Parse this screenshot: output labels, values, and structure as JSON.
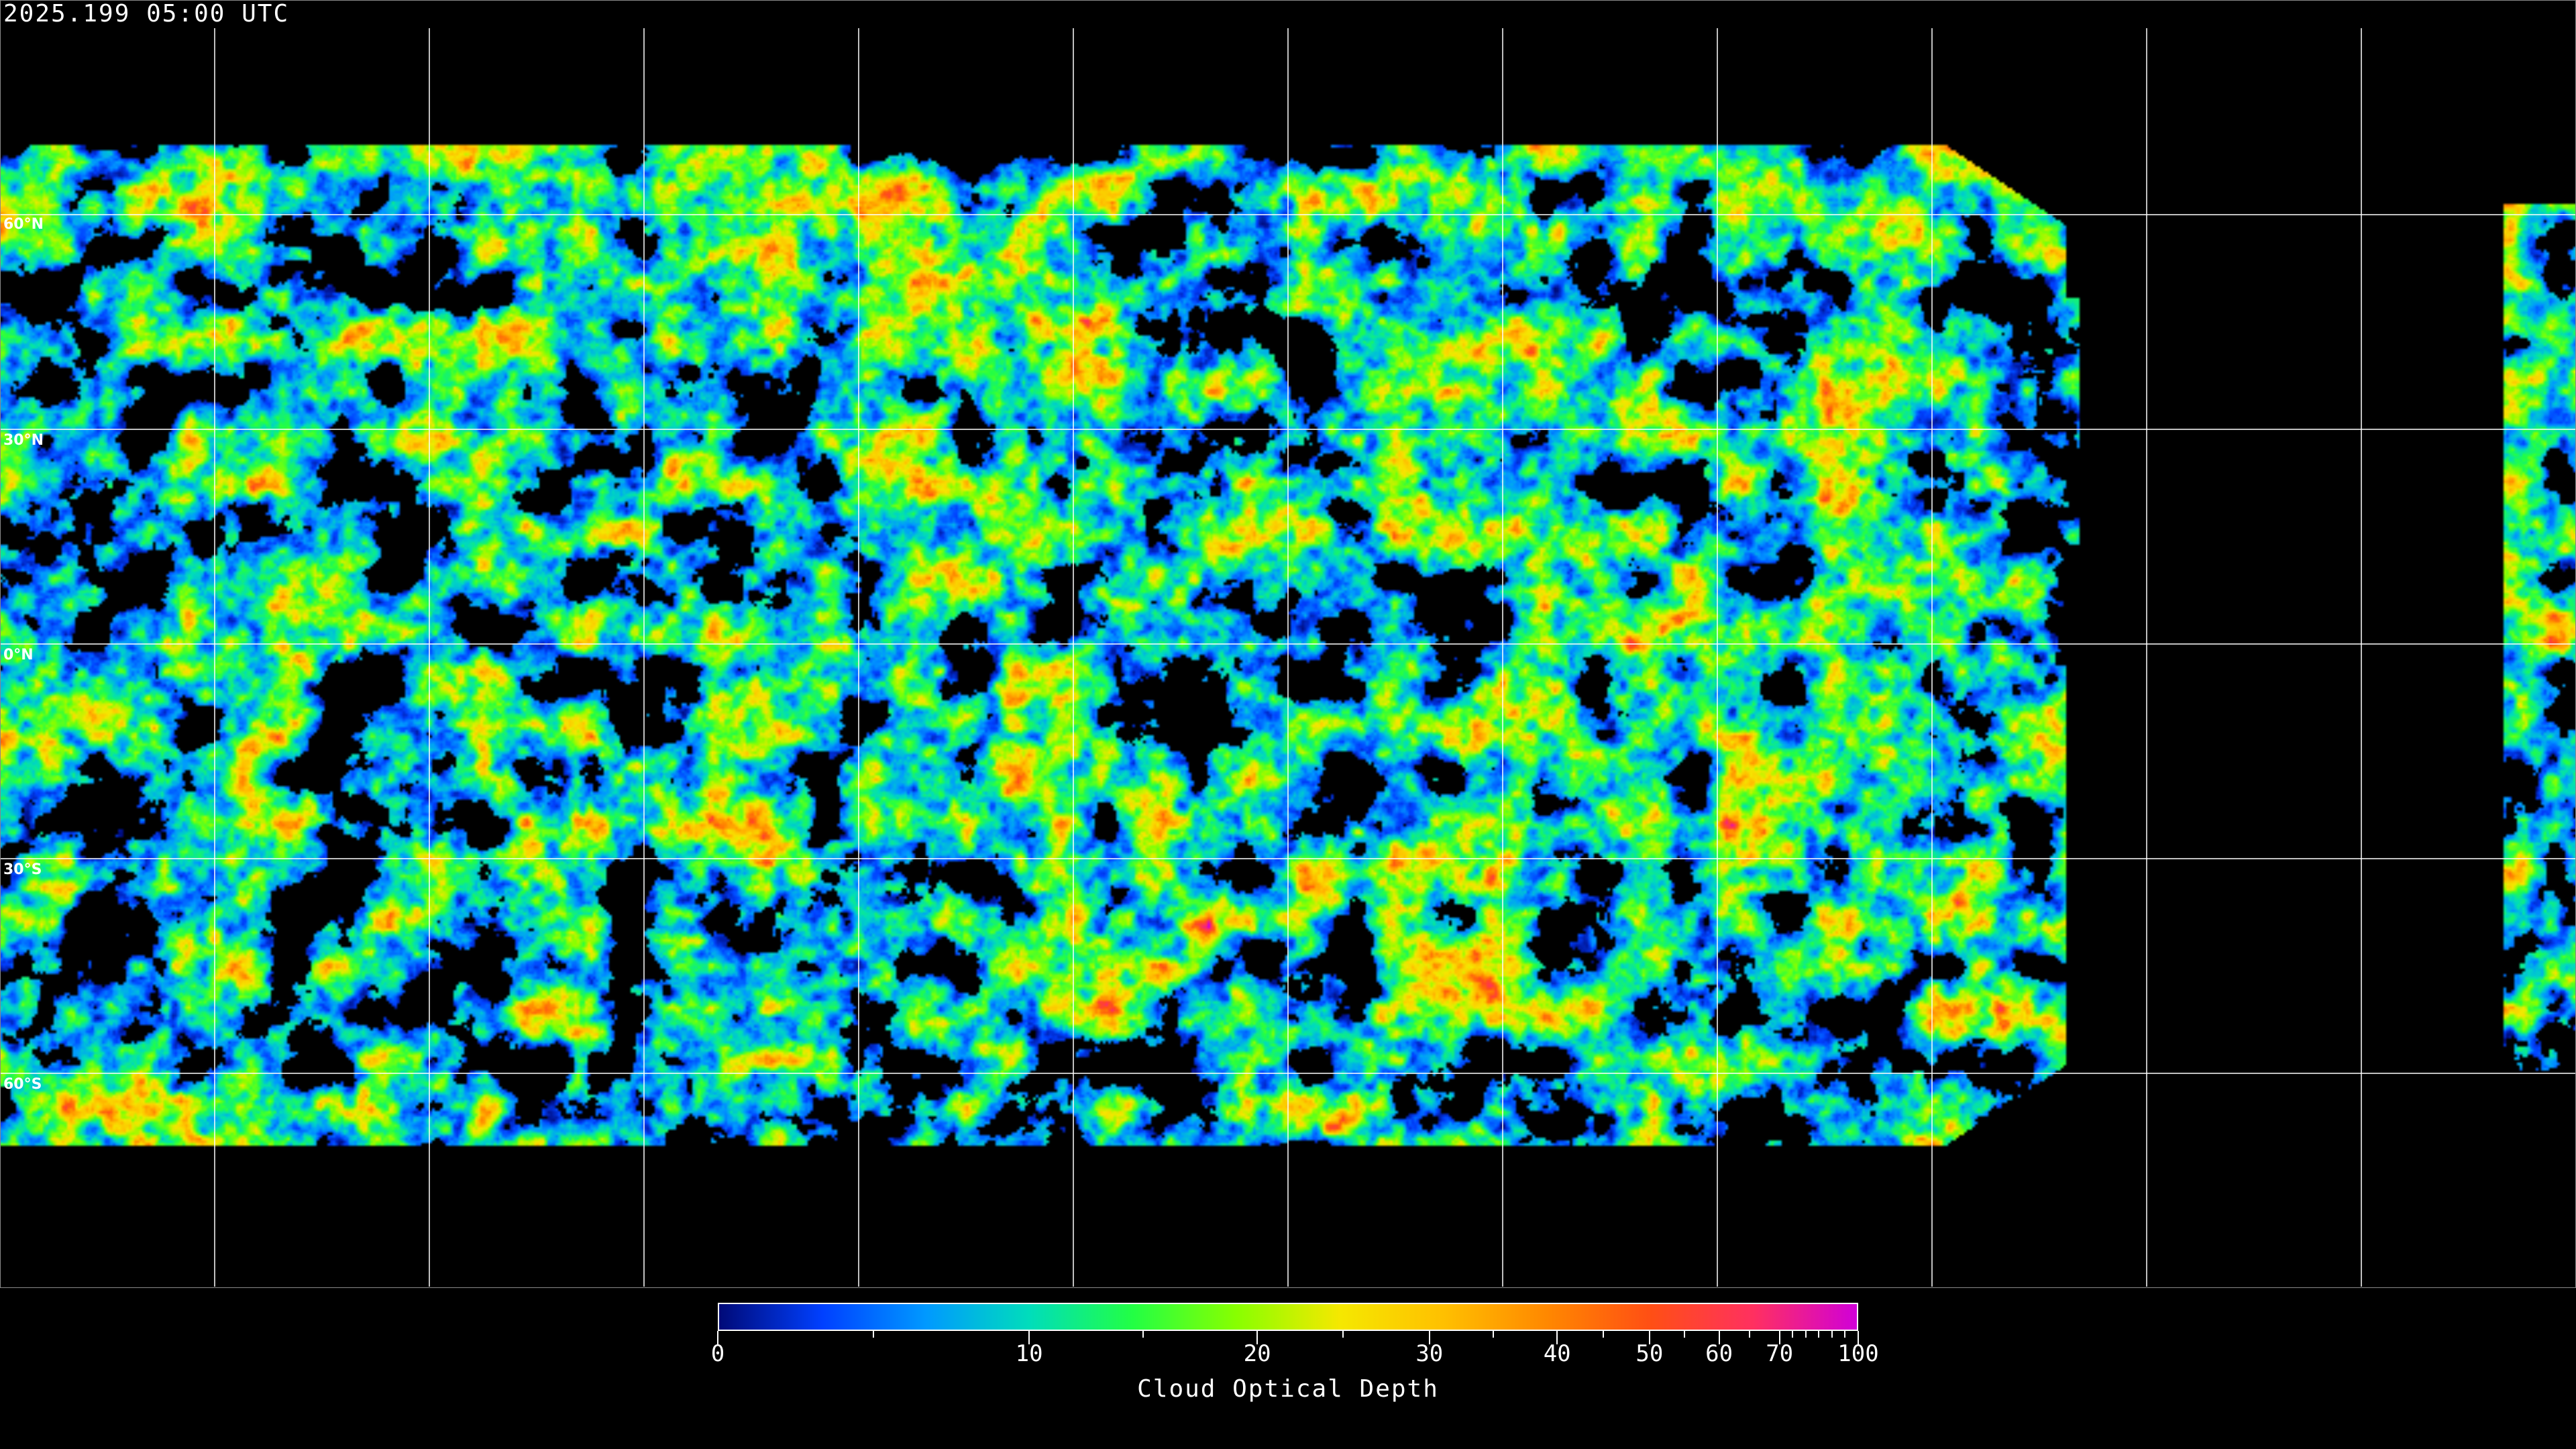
{
  "title": "2025.199 05:00 UTC",
  "map": {
    "variable": "Cloud Optical Depth",
    "projection": "equirectangular",
    "grid_spacing_deg": 30,
    "lat_labels": [
      "60°N",
      "30°N",
      "0°N",
      "30°S",
      "60°S"
    ],
    "lat_values": [
      60,
      30,
      0,
      -30,
      -60
    ],
    "no_data_color": "#000000",
    "gridline_color": "#ffffff"
  },
  "colorbar": {
    "label": "Cloud Optical Depth",
    "range": [
      0,
      100
    ],
    "major_ticks": [
      "0",
      "10",
      "20",
      "30",
      "40",
      "50",
      "60",
      "70",
      "100"
    ],
    "minor_ticks": [
      5,
      15,
      25,
      35,
      45,
      55,
      65,
      75,
      80,
      85,
      90,
      95
    ],
    "colors": [
      "#000a78",
      "#0040ff",
      "#0099ff",
      "#00ddbb",
      "#22ff44",
      "#88ff00",
      "#f5e800",
      "#ffc000",
      "#ff8800",
      "#ff4f14",
      "#ff3060",
      "#d000d8"
    ]
  }
}
